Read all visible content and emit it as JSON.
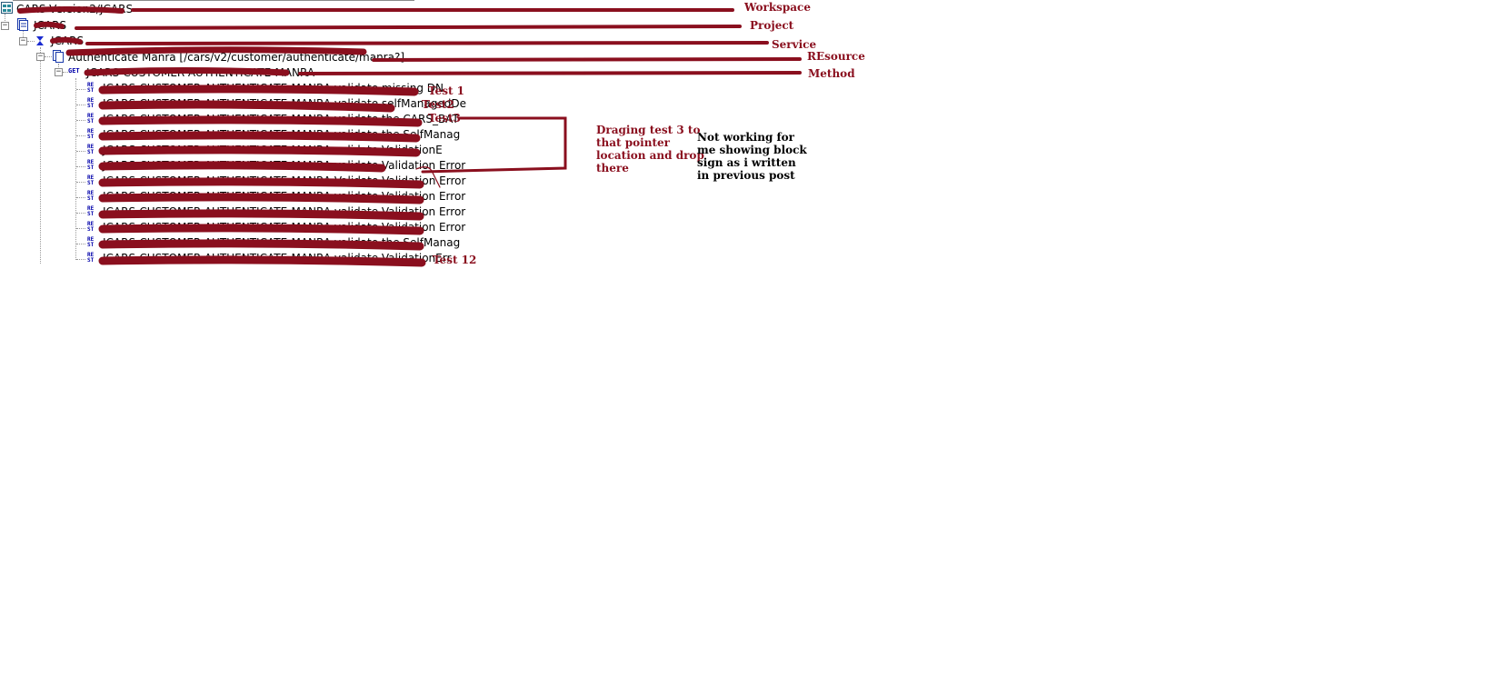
{
  "tree": {
    "workspace": {
      "label": "CARS-Version2/JCARS"
    },
    "project": {
      "label": "JCARS"
    },
    "service": {
      "label": "JCARS"
    },
    "resource": {
      "label": "Authenticate Manra [/cars/v2/customer/authenticate/manra?]"
    },
    "method": {
      "label": "JCARS-CUSTOMER-AUTHENTICATE-MANRA"
    },
    "tests": [
      {
        "label": "JCARS-CUSTOMER-AUTHENTICATE-MANRA validate missing DN"
      },
      {
        "label": "JCARS-CUSTOMER-AUTHENTICATE-MANRA validate selfManagedDe"
      },
      {
        "label": "JCARS-CUSTOMER-AUTHENTICATE-MANRA validate the CARS_BAT"
      },
      {
        "label": "JCARS-CUSTOMER-AUTHENTICATE-MANRA validate the SelfManag"
      },
      {
        "label": "JCARS-CUSTOMER-AUTHENTICATE-MANRA validate ValidationE"
      },
      {
        "label": "JCARS-CUSTOMER-AUTHENTICATE-MANRA validate Validation Error"
      },
      {
        "label": "JCARS-CUSTOMER-AUTHENTICATE-MANRA Validate Validation Error"
      },
      {
        "label": "JCARS-CUSTOMER-AUTHENTICATE-MANRA validate Validation Error"
      },
      {
        "label": "JCARS-CUSTOMER-AUTHENTICATE-MANRA validate Validation Error"
      },
      {
        "label": "JCARS-CUSTOMER-AUTHENTICATE-MANRA validate Validation Error"
      },
      {
        "label": "JCARS-CUSTOMER-AUTHENTICATE-MANRA validate the SelfManag"
      },
      {
        "label": "JCARS-CUSTOMER-AUTHENTICATE-MANRA validate ValidationErr"
      }
    ],
    "rest_icon_text": [
      "RE",
      "ST"
    ],
    "get_icon_text": "GET",
    "expander_symbol": "−"
  },
  "annotations": {
    "workspace": "Workspace",
    "project": "Project",
    "service": "Service",
    "resource": "REsource",
    "method": "Method",
    "test1": "Test 1",
    "test2": "Test2",
    "test3": "Test3",
    "test12": "Test 12",
    "drag_note": [
      "Draging test 3 to",
      "that pointer",
      "location and drop",
      "there"
    ],
    "block_note": [
      "Not working for",
      "me  showing block",
      "sign as i written",
      "in previous post"
    ]
  },
  "colors": {
    "annotation_red": "#8a0f1e",
    "icon_blue": "#0000aa"
  }
}
